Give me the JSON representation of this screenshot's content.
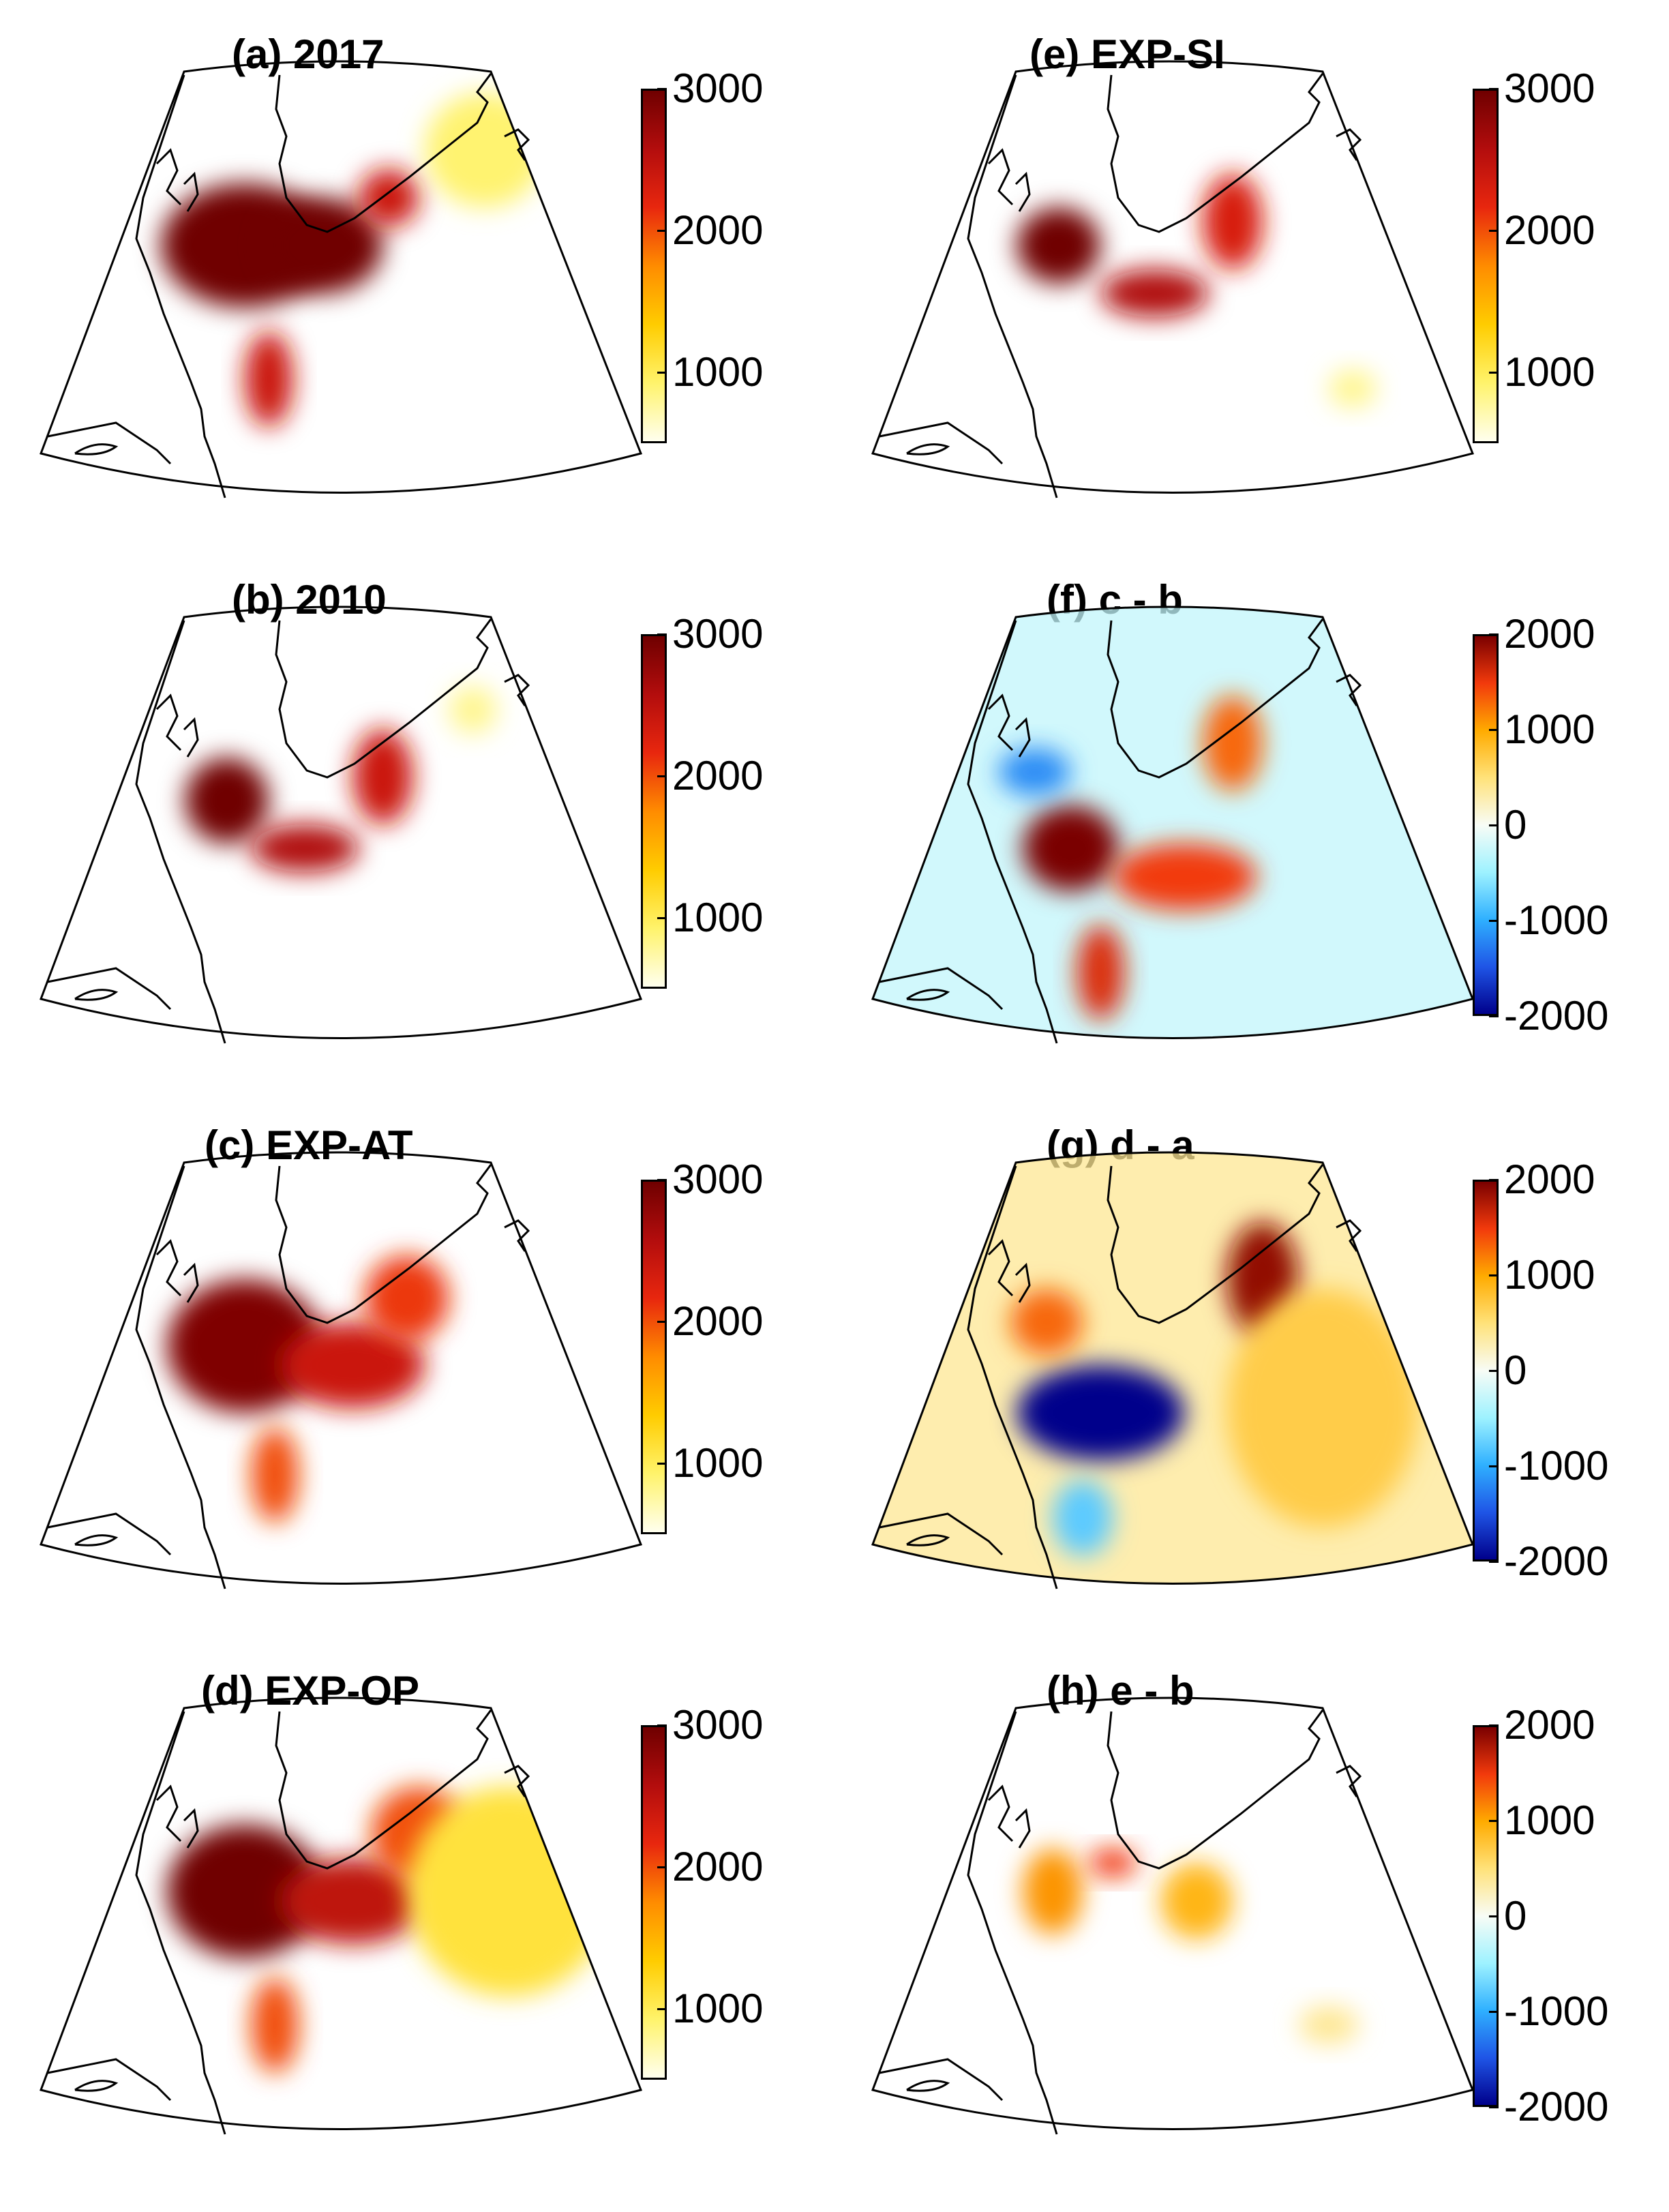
{
  "colors": {
    "background": "#ffffff",
    "coast": "#000000",
    "seq_scale": [
      "#ffffee",
      "#fff36b",
      "#ffcc00",
      "#ff8c00",
      "#e8270e",
      "#b30d0d",
      "#6f0000"
    ],
    "div_scale": [
      "#00008b",
      "#1f55e6",
      "#2fb0ff",
      "#9ef2ff",
      "#f8fcf6",
      "#ffe27a",
      "#ffab00",
      "#f23a0c",
      "#7a0000"
    ]
  },
  "chart_data": [
    {
      "id": "a",
      "type": "heatmap",
      "title": "(a) 2017",
      "colormap": "sequential",
      "colorbar": {
        "min": 500,
        "max": 3000,
        "ticks": [
          3000,
          2000,
          1000
        ],
        "tick_labels": [
          "3000",
          "2000",
          "1000"
        ]
      },
      "blobs": [
        {
          "cx": 0.34,
          "cy": 0.4,
          "rx": 0.14,
          "ry": 0.13,
          "value": 3000
        },
        {
          "cx": 0.47,
          "cy": 0.4,
          "rx": 0.1,
          "ry": 0.1,
          "value": 3000
        },
        {
          "cx": 0.58,
          "cy": 0.3,
          "rx": 0.05,
          "ry": 0.06,
          "value": 2400
        },
        {
          "cx": 0.38,
          "cy": 0.68,
          "rx": 0.04,
          "ry": 0.1,
          "value": 2400
        },
        {
          "cx": 0.74,
          "cy": 0.2,
          "rx": 0.1,
          "ry": 0.12,
          "value": 900
        }
      ]
    },
    {
      "id": "b",
      "type": "heatmap",
      "title": "(b) 2010",
      "colormap": "sequential",
      "colorbar": {
        "min": 500,
        "max": 3000,
        "ticks": [
          3000,
          2000,
          1000
        ],
        "tick_labels": [
          "3000",
          "2000",
          "1000"
        ]
      },
      "blobs": [
        {
          "cx": 0.31,
          "cy": 0.42,
          "rx": 0.07,
          "ry": 0.09,
          "value": 3000
        },
        {
          "cx": 0.44,
          "cy": 0.52,
          "rx": 0.09,
          "ry": 0.05,
          "value": 2600
        },
        {
          "cx": 0.57,
          "cy": 0.37,
          "rx": 0.05,
          "ry": 0.1,
          "value": 2400
        },
        {
          "cx": 0.72,
          "cy": 0.23,
          "rx": 0.04,
          "ry": 0.05,
          "value": 800
        }
      ]
    },
    {
      "id": "c",
      "type": "heatmap",
      "title": "(c) EXP-AT",
      "colormap": "sequential",
      "colorbar": {
        "min": 500,
        "max": 3000,
        "ticks": [
          3000,
          2000,
          1000
        ],
        "tick_labels": [
          "3000",
          "2000",
          "1000"
        ]
      },
      "blobs": [
        {
          "cx": 0.34,
          "cy": 0.42,
          "rx": 0.13,
          "ry": 0.14,
          "value": 2900
        },
        {
          "cx": 0.52,
          "cy": 0.46,
          "rx": 0.12,
          "ry": 0.09,
          "value": 2400
        },
        {
          "cx": 0.61,
          "cy": 0.32,
          "rx": 0.07,
          "ry": 0.09,
          "value": 2100
        },
        {
          "cx": 0.39,
          "cy": 0.69,
          "rx": 0.04,
          "ry": 0.1,
          "value": 2000
        }
      ]
    },
    {
      "id": "d",
      "type": "heatmap",
      "title": "(d) EXP-OP",
      "colormap": "sequential",
      "colorbar": {
        "min": 500,
        "max": 3000,
        "ticks": [
          3000,
          2000,
          1000
        ],
        "tick_labels": [
          "3000",
          "2000",
          "1000"
        ]
      },
      "blobs": [
        {
          "cx": 0.34,
          "cy": 0.42,
          "rx": 0.13,
          "ry": 0.14,
          "value": 3000
        },
        {
          "cx": 0.52,
          "cy": 0.44,
          "rx": 0.12,
          "ry": 0.09,
          "value": 2500
        },
        {
          "cx": 0.63,
          "cy": 0.3,
          "rx": 0.08,
          "ry": 0.1,
          "value": 2000
        },
        {
          "cx": 0.78,
          "cy": 0.42,
          "rx": 0.17,
          "ry": 0.22,
          "value": 1100
        },
        {
          "cx": 0.39,
          "cy": 0.7,
          "rx": 0.04,
          "ry": 0.1,
          "value": 2000
        }
      ]
    },
    {
      "id": "e",
      "type": "heatmap",
      "title": "(e) EXP-SI",
      "colormap": "sequential",
      "colorbar": {
        "min": 500,
        "max": 3000,
        "ticks": [
          3000,
          2000,
          1000
        ],
        "tick_labels": [
          "3000",
          "2000",
          "1000"
        ]
      },
      "blobs": [
        {
          "cx": 0.31,
          "cy": 0.4,
          "rx": 0.07,
          "ry": 0.08,
          "value": 3000
        },
        {
          "cx": 0.47,
          "cy": 0.5,
          "rx": 0.09,
          "ry": 0.05,
          "value": 2600
        },
        {
          "cx": 0.6,
          "cy": 0.35,
          "rx": 0.05,
          "ry": 0.1,
          "value": 2300
        },
        {
          "cx": 0.8,
          "cy": 0.7,
          "rx": 0.04,
          "ry": 0.04,
          "value": 800
        }
      ]
    },
    {
      "id": "f",
      "type": "heatmap",
      "title": "(f) c - b",
      "colormap": "diverging",
      "colorbar": {
        "min": -2000,
        "max": 2000,
        "ticks": [
          2000,
          1000,
          0,
          -1000,
          -2000
        ],
        "tick_labels": [
          "2000",
          "1000",
          "0",
          "-1000",
          "-2000"
        ]
      },
      "background_field": -300,
      "blobs": [
        {
          "cx": 0.33,
          "cy": 0.52,
          "rx": 0.08,
          "ry": 0.09,
          "value": 2000
        },
        {
          "cx": 0.52,
          "cy": 0.58,
          "rx": 0.12,
          "ry": 0.07,
          "value": 1500
        },
        {
          "cx": 0.6,
          "cy": 0.3,
          "rx": 0.05,
          "ry": 0.1,
          "value": 1300
        },
        {
          "cx": 0.27,
          "cy": 0.36,
          "rx": 0.06,
          "ry": 0.05,
          "value": -1200
        },
        {
          "cx": 0.38,
          "cy": 0.78,
          "rx": 0.04,
          "ry": 0.1,
          "value": 1600
        }
      ]
    },
    {
      "id": "g",
      "type": "heatmap",
      "title": "(g) d - a",
      "colormap": "diverging",
      "colorbar": {
        "min": -2000,
        "max": 2000,
        "ticks": [
          2000,
          1000,
          0,
          -1000,
          -2000
        ],
        "tick_labels": [
          "2000",
          "1000",
          "0",
          "-1000",
          "-2000"
        ]
      },
      "background_field": 400,
      "blobs": [
        {
          "cx": 0.38,
          "cy": 0.56,
          "rx": 0.14,
          "ry": 0.1,
          "value": -2000
        },
        {
          "cx": 0.29,
          "cy": 0.37,
          "rx": 0.06,
          "ry": 0.07,
          "value": 1300
        },
        {
          "cx": 0.65,
          "cy": 0.28,
          "rx": 0.06,
          "ry": 0.12,
          "value": 1900
        },
        {
          "cx": 0.75,
          "cy": 0.55,
          "rx": 0.16,
          "ry": 0.25,
          "value": 700
        },
        {
          "cx": 0.35,
          "cy": 0.78,
          "rx": 0.05,
          "ry": 0.08,
          "value": -800
        }
      ]
    },
    {
      "id": "h",
      "type": "heatmap",
      "title": "(h) e - b",
      "colormap": "diverging",
      "colorbar": {
        "min": -2000,
        "max": 2000,
        "ticks": [
          2000,
          1000,
          0,
          -1000,
          -2000
        ],
        "tick_labels": [
          "2000",
          "1000",
          "0",
          "-1000",
          "-2000"
        ]
      },
      "background_field": 0,
      "blobs": [
        {
          "cx": 0.3,
          "cy": 0.42,
          "rx": 0.05,
          "ry": 0.09,
          "value": 1100
        },
        {
          "cx": 0.4,
          "cy": 0.36,
          "rx": 0.04,
          "ry": 0.03,
          "value": 1500
        },
        {
          "cx": 0.54,
          "cy": 0.44,
          "rx": 0.06,
          "ry": 0.08,
          "value": 900
        },
        {
          "cx": 0.76,
          "cy": 0.7,
          "rx": 0.05,
          "ry": 0.04,
          "value": 400
        }
      ]
    }
  ]
}
